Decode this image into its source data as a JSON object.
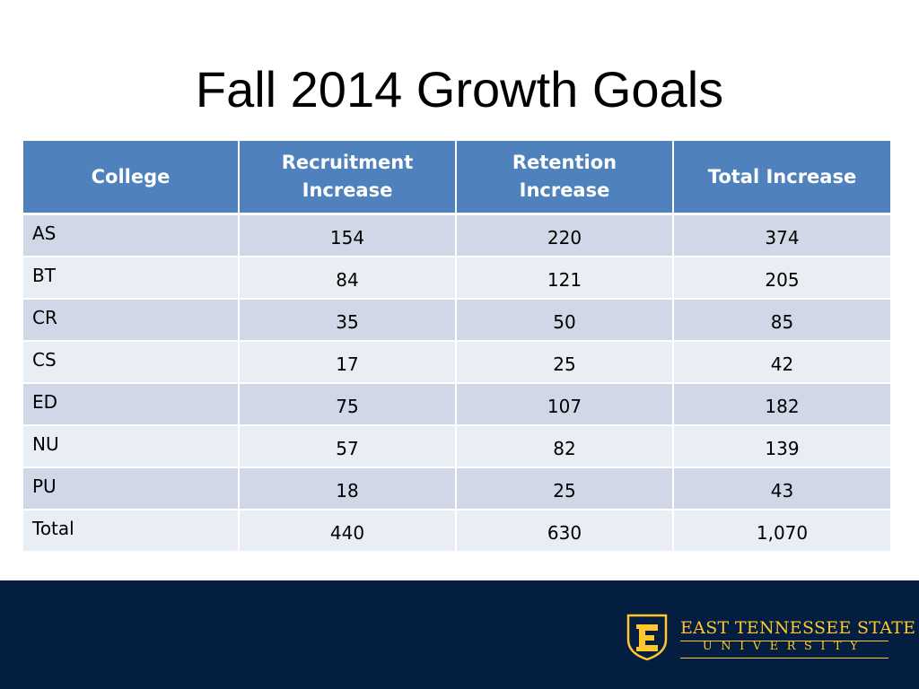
{
  "title": "Fall 2014 Growth Goals",
  "colors": {
    "header_bg": "#4f81bd",
    "row_band_dark": "#d0d8e8",
    "row_band_light": "#e9edf4",
    "footer_bg": "#041e42",
    "logo_gold": "#ffc72c"
  },
  "table": {
    "headers": {
      "college": "College",
      "recruitment_line1": "Recruitment",
      "recruitment_line2": "Increase",
      "retention_line1": "Retention",
      "retention_line2": "Increase",
      "total": "Total Increase"
    },
    "rows": [
      {
        "college": "AS",
        "recruitment": "154",
        "retention": "220",
        "total": "374"
      },
      {
        "college": "BT",
        "recruitment": "84",
        "retention": "121",
        "total": "205"
      },
      {
        "college": "CR",
        "recruitment": "35",
        "retention": "50",
        "total": "85"
      },
      {
        "college": "CS",
        "recruitment": "17",
        "retention": "25",
        "total": "42"
      },
      {
        "college": "ED",
        "recruitment": "75",
        "retention": "107",
        "total": "182"
      },
      {
        "college": "NU",
        "recruitment": "57",
        "retention": "82",
        "total": "139"
      },
      {
        "college": "PU",
        "recruitment": "18",
        "retention": "25",
        "total": "43"
      },
      {
        "college": "Total",
        "recruitment": "440",
        "retention": "630",
        "total": "1,070"
      }
    ]
  },
  "footer": {
    "logo_icon": "etsu-e-shield-icon",
    "logo_line1": "EAST TENNESSEE STATE",
    "logo_line2": "UNIVERSITY"
  }
}
